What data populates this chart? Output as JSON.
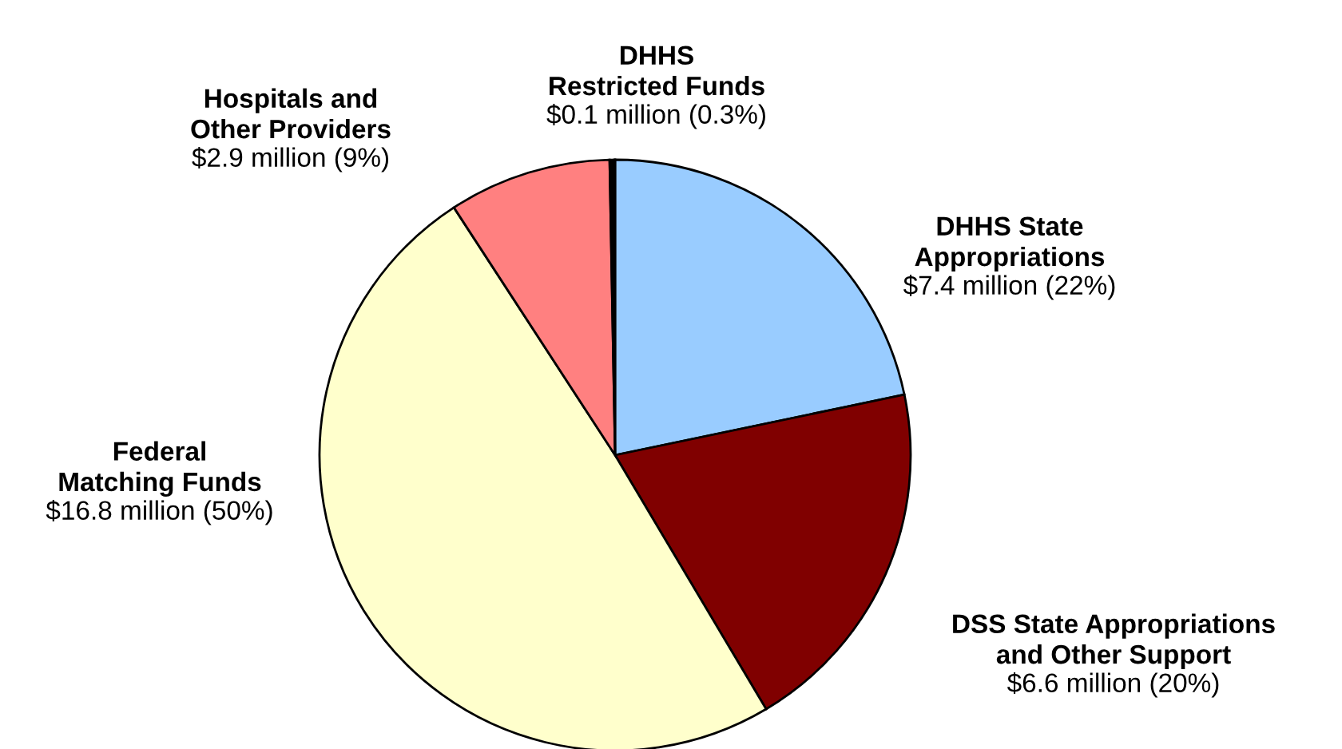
{
  "chart_data": {
    "type": "pie",
    "categories": [
      "DHHS State\nAppropriations",
      "DSS State Appropriations\nand Other Support",
      "Federal\nMatching Funds",
      "Hospitals and\nOther Providers",
      "DHHS\nRestricted Funds"
    ],
    "values": [
      22,
      20,
      50,
      9,
      0.3
    ],
    "value_labels": [
      "$7.4 million (22%)",
      "$6.6 million (20%)",
      "$16.8 million (50%)",
      "$2.9 million (9%)",
      "$0.1 million (0.3%)"
    ],
    "colors": [
      "#99ccff",
      "#800000",
      "#ffffcc",
      "#ff8080",
      "#000000"
    ]
  }
}
